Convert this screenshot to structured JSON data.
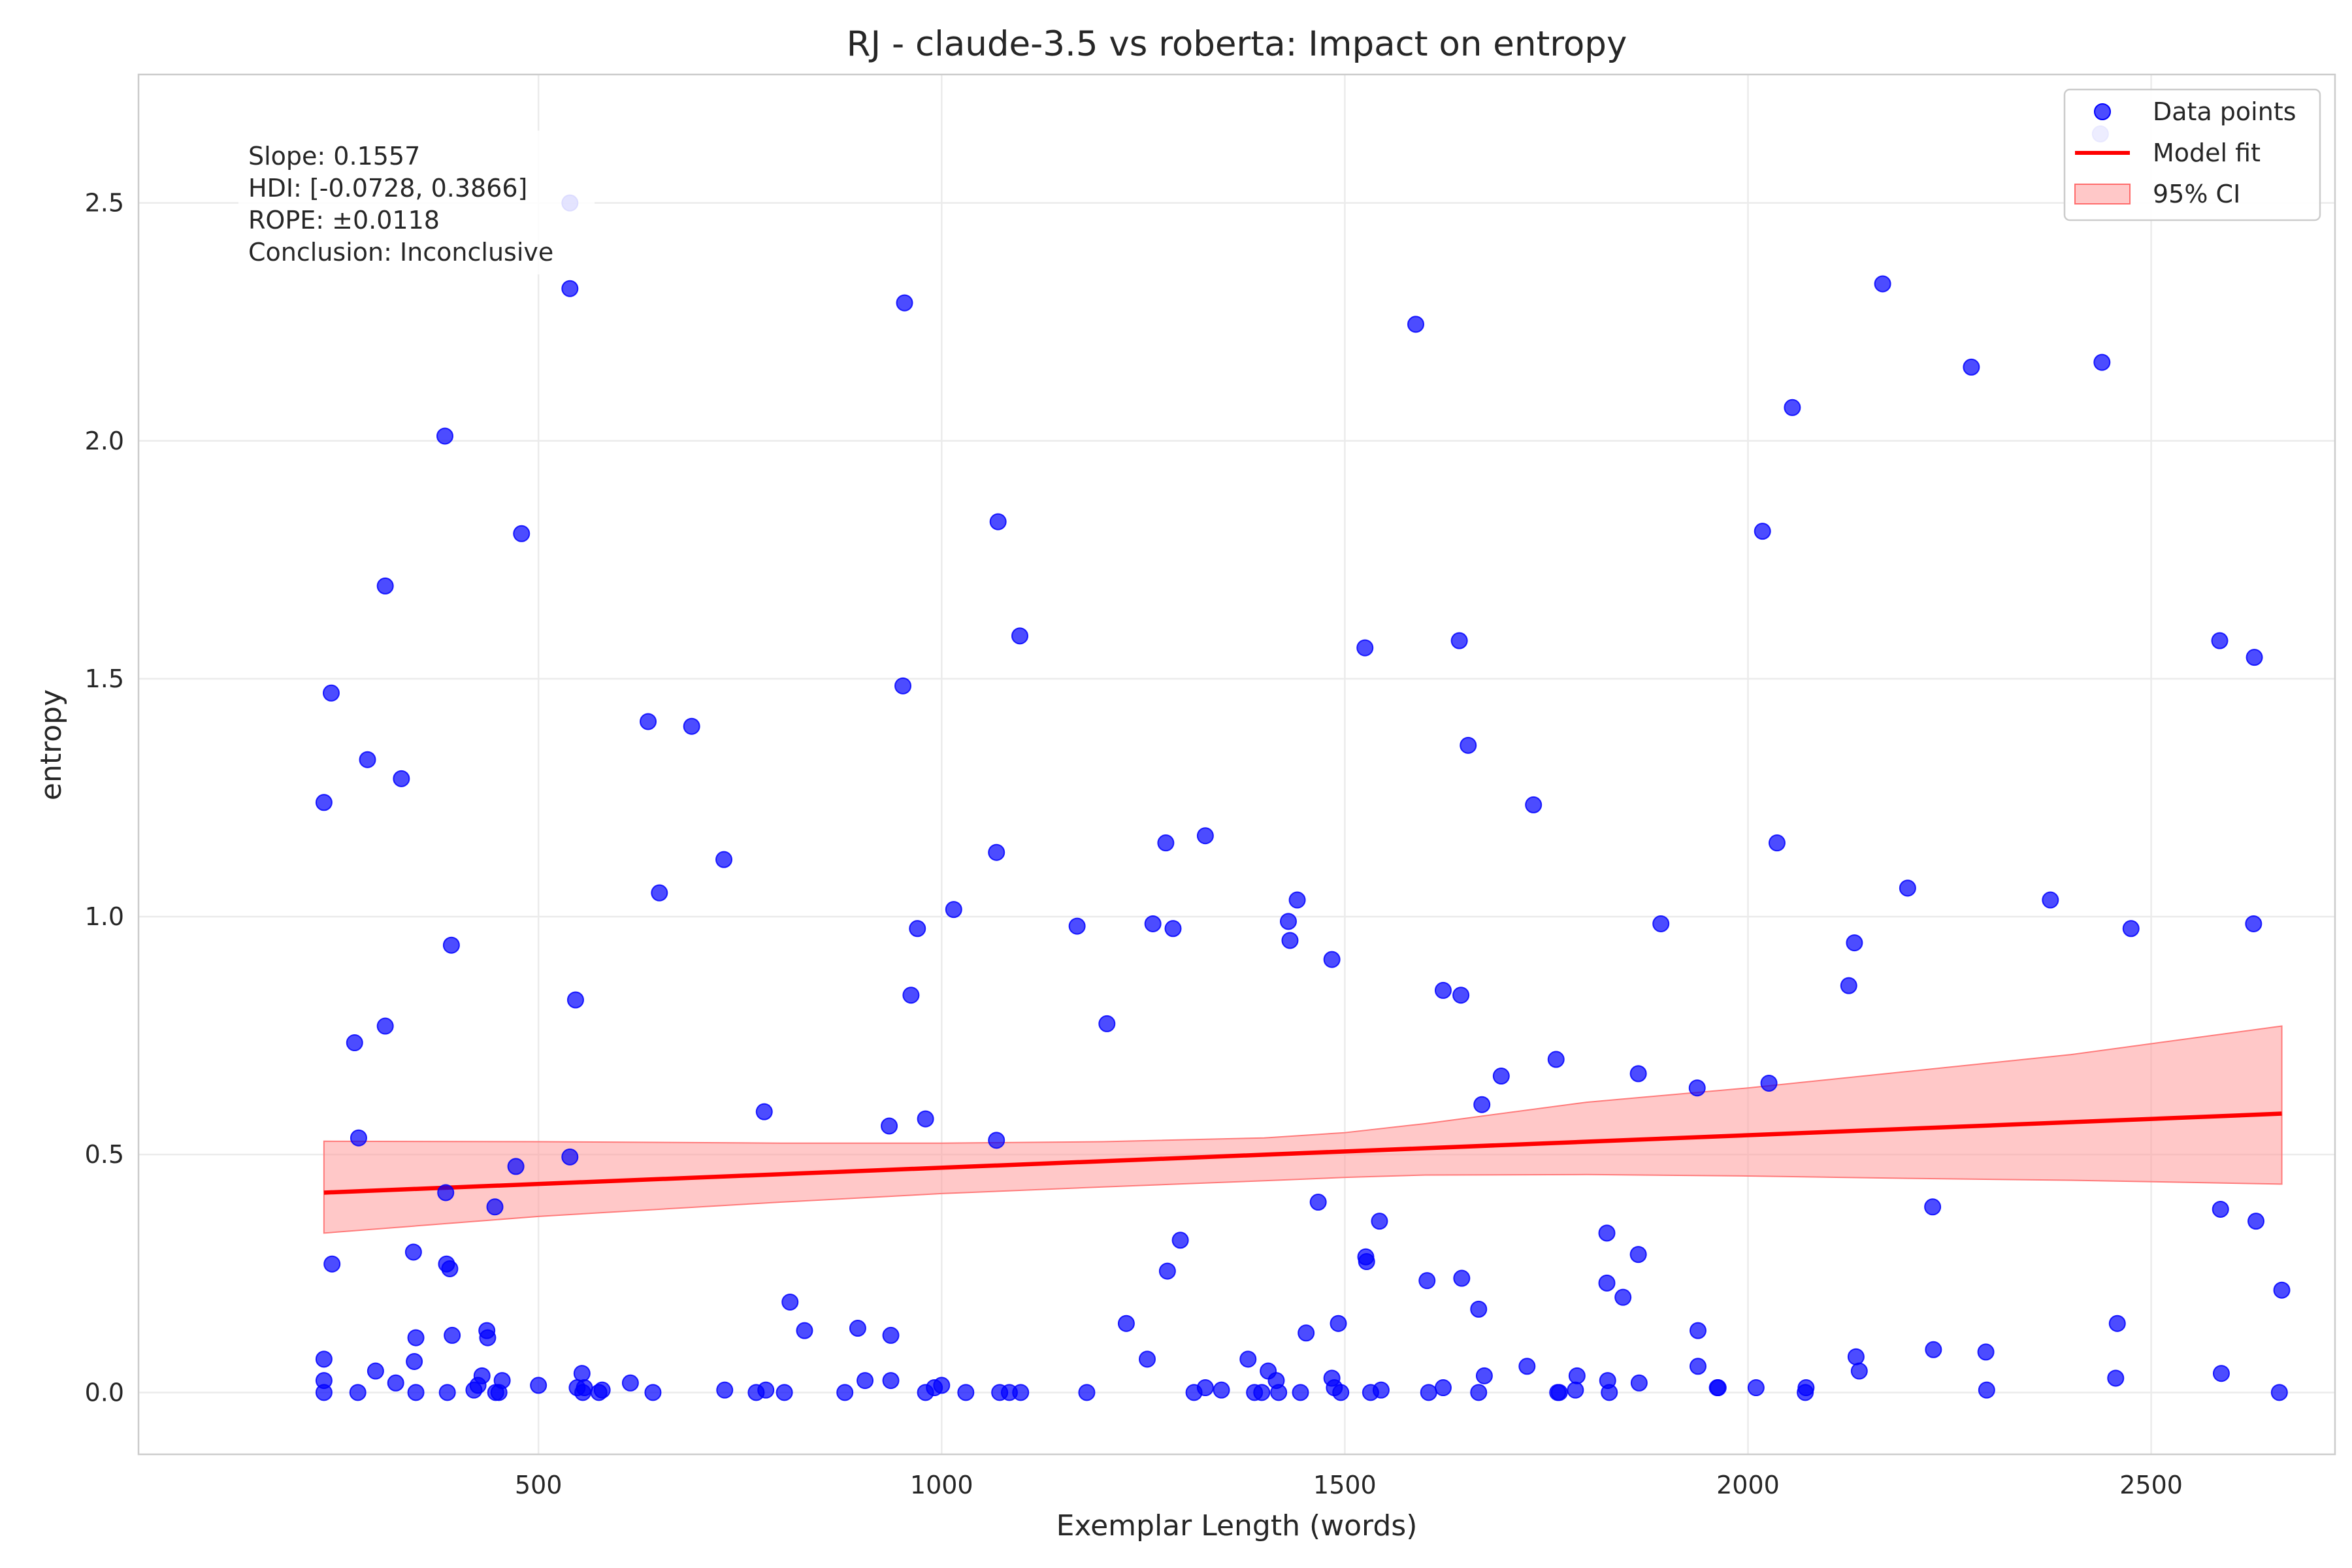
{
  "chart_data": {
    "type": "scatter",
    "title": "RJ - claude-3.5 vs roberta: Impact on entropy",
    "xlabel": "Exemplar Length (words)",
    "ylabel": "entropy",
    "xlim": [
      4,
      2728
    ],
    "ylim": [
      -0.13,
      2.77
    ],
    "grid": true,
    "xticks": [
      500,
      1000,
      1500,
      2000,
      2500
    ],
    "yticks": [
      0.0,
      0.5,
      1.0,
      1.5,
      2.0,
      2.5
    ],
    "xtick_labels": [
      "500",
      "1000",
      "1500",
      "2000",
      "2500"
    ],
    "ytick_labels": [
      "0.0",
      "0.5",
      "1.0",
      "1.5",
      "2.0",
      "2.5"
    ],
    "legend": {
      "position": "top-right",
      "entries": [
        "Data points",
        "Model fit",
        "95% CI"
      ]
    },
    "annotation": {
      "lines": [
        "Slope: 0.1557",
        "HDI: [-0.0728, 0.3866]",
        "ROPE: ±0.0118",
        "Conclusion: Inconclusive"
      ]
    },
    "colors": {
      "points": "#0000ff",
      "fit": "#ff0000",
      "ci": "#ff9a9a"
    },
    "model_fit": {
      "x": [
        234,
        2662
      ],
      "y": [
        0.42,
        0.586
      ]
    },
    "ci_band": {
      "x": [
        234,
        500,
        800,
        1000,
        1200,
        1400,
        1500,
        1600,
        1800,
        2000,
        2200,
        2400,
        2662
      ],
      "upper": [
        0.528,
        0.527,
        0.524,
        0.524,
        0.527,
        0.535,
        0.546,
        0.565,
        0.61,
        0.64,
        0.675,
        0.71,
        0.77
      ],
      "lower": [
        0.335,
        0.37,
        0.4,
        0.418,
        0.432,
        0.445,
        0.452,
        0.457,
        0.458,
        0.455,
        0.45,
        0.446,
        0.438
      ]
    },
    "series": [
      {
        "name": "Data points",
        "points": [
          [
            234,
            1.24
          ],
          [
            243,
            1.47
          ],
          [
            244,
            0.27
          ],
          [
            234,
            0.07
          ],
          [
            234,
            0.025
          ],
          [
            234,
            0.0
          ],
          [
            272,
            0.735
          ],
          [
            277,
            0.535
          ],
          [
            288,
            1.33
          ],
          [
            276,
            0.0
          ],
          [
            298,
            0.045
          ],
          [
            310,
            1.695
          ],
          [
            310,
            0.77
          ],
          [
            323,
            0.02
          ],
          [
            330,
            1.29
          ],
          [
            345,
            0.295
          ],
          [
            346,
            0.065
          ],
          [
            348,
            0.115
          ],
          [
            348,
            0.0
          ],
          [
            384,
            2.01
          ],
          [
            385,
            0.42
          ],
          [
            386,
            0.27
          ],
          [
            390,
            0.26
          ],
          [
            392,
            0.94
          ],
          [
            393,
            0.12
          ],
          [
            387,
            0.0
          ],
          [
            420,
            0.005
          ],
          [
            425,
            0.015
          ],
          [
            430,
            0.035
          ],
          [
            436,
            0.13
          ],
          [
            437,
            0.115
          ],
          [
            446,
            0.39
          ],
          [
            447,
            0.0
          ],
          [
            451,
            0.0
          ],
          [
            455,
            0.025
          ],
          [
            472,
            0.475
          ],
          [
            479,
            1.805
          ],
          [
            500,
            0.015
          ],
          [
            539,
            2.5
          ],
          [
            539,
            2.32
          ],
          [
            539,
            0.495
          ],
          [
            546,
            0.825
          ],
          [
            548,
            0.01
          ],
          [
            554,
            0.04
          ],
          [
            555,
            0.0
          ],
          [
            557,
            0.01
          ],
          [
            575,
            0.0
          ],
          [
            579,
            0.005
          ],
          [
            614,
            0.02
          ],
          [
            636,
            1.41
          ],
          [
            642,
            0.0
          ],
          [
            650,
            1.05
          ],
          [
            690,
            1.4
          ],
          [
            730,
            1.12
          ],
          [
            731,
            0.005
          ],
          [
            770,
            0.0
          ],
          [
            780,
            0.59
          ],
          [
            782,
            0.005
          ],
          [
            805,
            0.0
          ],
          [
            812,
            0.19
          ],
          [
            830,
            0.13
          ],
          [
            880,
            0.0
          ],
          [
            896,
            0.135
          ],
          [
            905,
            0.025
          ],
          [
            935,
            0.56
          ],
          [
            937,
            0.025
          ],
          [
            937,
            0.12
          ],
          [
            952,
            1.485
          ],
          [
            954,
            2.29
          ],
          [
            962,
            0.835
          ],
          [
            970,
            0.975
          ],
          [
            980,
            0.575
          ],
          [
            980,
            0.0
          ],
          [
            991,
            0.01
          ],
          [
            1000,
            0.015
          ],
          [
            1015,
            1.015
          ],
          [
            1030,
            0.0
          ],
          [
            1068,
            1.135
          ],
          [
            1068,
            0.53
          ],
          [
            1070,
            1.83
          ],
          [
            1072,
            0.0
          ],
          [
            1084,
            0.0
          ],
          [
            1097,
            1.59
          ],
          [
            1098,
            0.0
          ],
          [
            1168,
            0.98
          ],
          [
            1180,
            0.0
          ],
          [
            1205,
            0.775
          ],
          [
            1229,
            0.145
          ],
          [
            1255,
            0.07
          ],
          [
            1262,
            0.985
          ],
          [
            1278,
            1.155
          ],
          [
            1280,
            0.255
          ],
          [
            1287,
            0.975
          ],
          [
            1296,
            0.32
          ],
          [
            1313,
            0.0
          ],
          [
            1327,
            1.17
          ],
          [
            1327,
            0.01
          ],
          [
            1347,
            0.005
          ],
          [
            1380,
            0.07
          ],
          [
            1388,
            0.0
          ],
          [
            1397,
            0.0
          ],
          [
            1405,
            0.045
          ],
          [
            1415,
            0.025
          ],
          [
            1418,
            0.0
          ],
          [
            1430,
            0.99
          ],
          [
            1432,
            0.95
          ],
          [
            1441,
            1.035
          ],
          [
            1445,
            0.0
          ],
          [
            1452,
            0.125
          ],
          [
            1467,
            0.4
          ],
          [
            1484,
            0.91
          ],
          [
            1484,
            0.03
          ],
          [
            1487,
            0.01
          ],
          [
            1492,
            0.145
          ],
          [
            1495,
            0.0
          ],
          [
            1525,
            1.565
          ],
          [
            1526,
            0.285
          ],
          [
            1527,
            0.275
          ],
          [
            1532,
            0.0
          ],
          [
            1543,
            0.36
          ],
          [
            1545,
            0.005
          ],
          [
            1588,
            2.245
          ],
          [
            1602,
            0.235
          ],
          [
            1604,
            0.0
          ],
          [
            1622,
            0.845
          ],
          [
            1622,
            0.01
          ],
          [
            1642,
            1.58
          ],
          [
            1644,
            0.835
          ],
          [
            1645,
            0.24
          ],
          [
            1653,
            1.36
          ],
          [
            1666,
            0.175
          ],
          [
            1666,
            0.0
          ],
          [
            1670,
            0.605
          ],
          [
            1673,
            0.035
          ],
          [
            1694,
            0.665
          ],
          [
            1726,
            0.055
          ],
          [
            1734,
            1.235
          ],
          [
            1762,
            0.7
          ],
          [
            1764,
            0.0
          ],
          [
            1766,
            0.0
          ],
          [
            1786,
            0.005
          ],
          [
            1788,
            0.035
          ],
          [
            1825,
            0.335
          ],
          [
            1825,
            0.23
          ],
          [
            1826,
            0.025
          ],
          [
            1828,
            0.0
          ],
          [
            1845,
            0.2
          ],
          [
            1864,
            0.67
          ],
          [
            1864,
            0.29
          ],
          [
            1865,
            0.02
          ],
          [
            1892,
            0.985
          ],
          [
            1937,
            0.64
          ],
          [
            1938,
            0.13
          ],
          [
            1938,
            0.055
          ],
          [
            1962,
            0.01
          ],
          [
            1963,
            0.01
          ],
          [
            2010,
            0.01
          ],
          [
            2018,
            1.81
          ],
          [
            2026,
            0.65
          ],
          [
            2036,
            1.155
          ],
          [
            2055,
            2.07
          ],
          [
            2071,
            0.0
          ],
          [
            2072,
            0.01
          ],
          [
            2125,
            0.855
          ],
          [
            2132,
            0.945
          ],
          [
            2134,
            0.075
          ],
          [
            2138,
            0.045
          ],
          [
            2167,
            2.33
          ],
          [
            2198,
            1.06
          ],
          [
            2229,
            0.39
          ],
          [
            2230,
            0.09
          ],
          [
            2277,
            2.155
          ],
          [
            2295,
            0.085
          ],
          [
            2296,
            0.005
          ],
          [
            2375,
            1.035
          ],
          [
            2437,
            2.645
          ],
          [
            2439,
            2.165
          ],
          [
            2456,
            0.03
          ],
          [
            2458,
            0.145
          ],
          [
            2475,
            0.975
          ],
          [
            2585,
            1.58
          ],
          [
            2586,
            0.385
          ],
          [
            2587,
            0.04
          ],
          [
            2627,
            0.985
          ],
          [
            2628,
            1.545
          ],
          [
            2630,
            0.36
          ],
          [
            2659,
            0.0
          ],
          [
            2662,
            0.215
          ]
        ]
      }
    ]
  }
}
